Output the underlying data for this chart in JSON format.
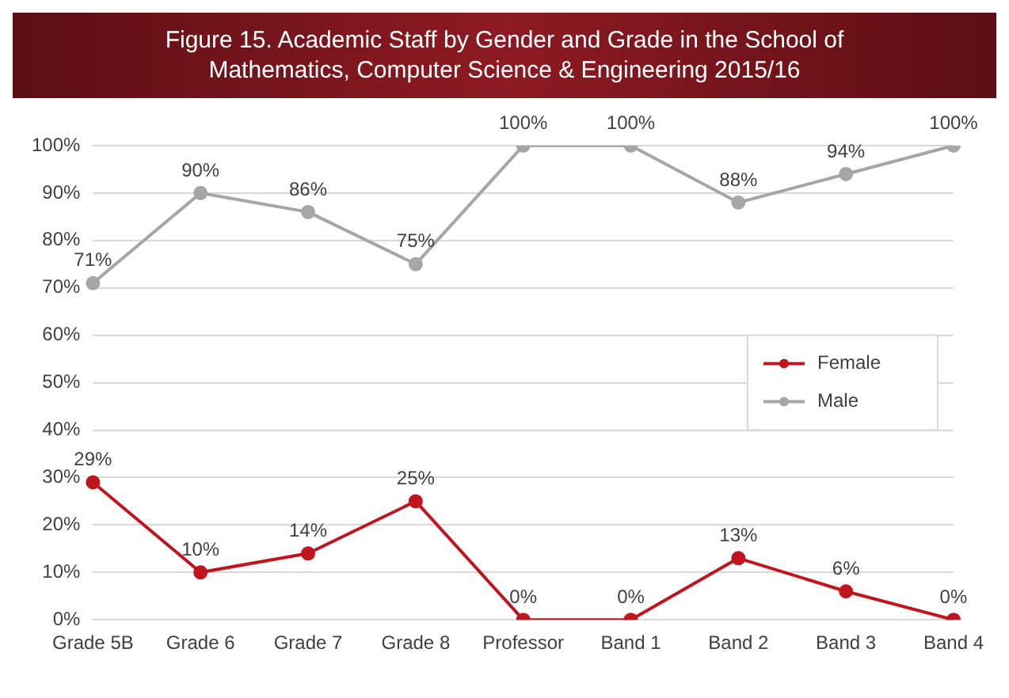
{
  "chart_data": {
    "type": "line",
    "title": "Figure 15. Academic Staff by Gender and Grade in the School of Mathematics, Computer Science & Engineering 2015/16",
    "categories": [
      "Grade 5B",
      "Grade 6",
      "Grade 7",
      "Grade 8",
      "Professor",
      "Band 1",
      "Band 2",
      "Band 3",
      "Band 4"
    ],
    "series": [
      {
        "name": "Female",
        "color": "#c0141e",
        "values": [
          29,
          10,
          14,
          25,
          0,
          0,
          13,
          6,
          0
        ],
        "value_labels": [
          "29%",
          "10%",
          "14%",
          "25%",
          "0%",
          "0%",
          "13%",
          "6%",
          "0%"
        ]
      },
      {
        "name": "Male",
        "color": "#a6a6a6",
        "values": [
          71,
          90,
          86,
          75,
          100,
          100,
          88,
          94,
          100
        ],
        "value_labels": [
          "71%",
          "90%",
          "86%",
          "75%",
          "100%",
          "100%",
          "88%",
          "94%",
          "100%"
        ]
      }
    ],
    "ylim": [
      0,
      100
    ],
    "yticks": [
      {
        "value": 0,
        "label": "0%"
      },
      {
        "value": 10,
        "label": "10%"
      },
      {
        "value": 20,
        "label": "20%"
      },
      {
        "value": 30,
        "label": "30%"
      },
      {
        "value": 40,
        "label": "40%"
      },
      {
        "value": 50,
        "label": "50%"
      },
      {
        "value": 60,
        "label": "60%"
      },
      {
        "value": 70,
        "label": "70%"
      },
      {
        "value": 80,
        "label": "80%"
      },
      {
        "value": 90,
        "label": "90%"
      },
      {
        "value": 100,
        "label": "100%"
      }
    ],
    "grid": "y",
    "legend": "right",
    "marker": "circle",
    "line_style": "solid"
  }
}
